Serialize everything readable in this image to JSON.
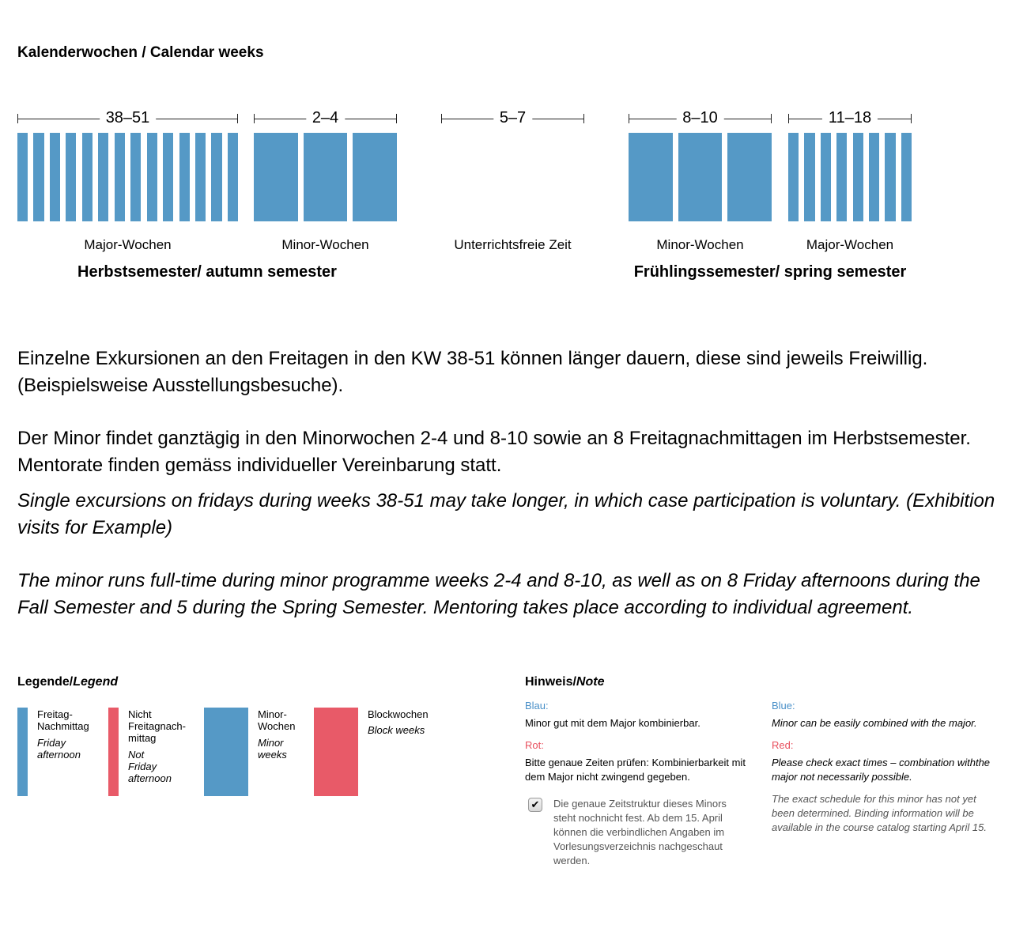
{
  "title": "Kalenderwochen / Calendar weeks",
  "colors": {
    "blue": "#5599c6",
    "red": "#e85a68",
    "label_blue": "#4a90c8",
    "label_red": "#e8505e"
  },
  "timeline": {
    "groups": [
      {
        "range": "38–51",
        "label": "Major-Wochen",
        "weeks": 14,
        "type": "major"
      },
      {
        "range": "2–4",
        "label": "Minor-Wochen",
        "weeks": 3,
        "type": "minor"
      },
      {
        "range": "5–7",
        "label": "Unterrichtsfreie Zeit",
        "weeks": 0,
        "type": "break"
      },
      {
        "range": "8–10",
        "label": "Minor-Wochen",
        "weeks": 3,
        "type": "minor"
      },
      {
        "range": "11–18",
        "label": "Major-Wochen",
        "weeks": 8,
        "type": "major"
      }
    ],
    "autumn": "Herbstsemester/ autumn semester",
    "spring": "Frühlingssemester/ spring semester"
  },
  "text": {
    "p1": "Einzelne Exkursionen an den Freitagen in den KW 38-51 können länger dauern, diese sind jeweils Freiwillig. (Beispielsweise Ausstellungsbesuche).",
    "p2": "Der Minor findet ganztägig in den Minorwochen 2-4 und 8-10 sowie an 8 Freitagnachmittagen im Herbstsemester. Mentorate finden gemäss individueller Vereinbarung statt.",
    "p3": "Single excursions on fridays during weeks 38-51 may take longer, in which case participation is voluntary. (Exhibition visits for Example)",
    "p4": "The minor runs full-time during minor programme weeks 2-4 and 8-10, as well as on 8 Friday afternoons during the Fall Semester and 5 during the Spring Semester. Mentoring takes place according to individual agreement."
  },
  "legend": {
    "title_de": "Legende/",
    "title_en": "Legend",
    "items": [
      {
        "de": "Freitag-Nachmittag",
        "en": "Friday afternoon",
        "color": "blue"
      },
      {
        "de": "Nicht Freitagnach-mittag",
        "en": "Not Friday afternoon",
        "color": "red"
      },
      {
        "de": "Minor-Wochen",
        "en": "Minor weeks",
        "color": "blue"
      },
      {
        "de": "Blockwochen",
        "en": "Block weeks",
        "color": "red"
      }
    ]
  },
  "note": {
    "title_de": "Hinweis/",
    "title_en": "Note",
    "blau": "Blau:",
    "blau_text": "Minor gut mit dem Major kombinierbar.",
    "rot": "Rot:",
    "rot_text": "Bitte genaue Zeiten prüfen: Kombinierbarkeit mit dem Major nicht zwingend gegeben.",
    "blue": "Blue:",
    "blue_text": "Minor can be easily combined with the major.",
    "red": "Red:",
    "red_text": "Please check exact times – combination withthe major not necessarily possible.",
    "checkbox_checked": true,
    "checkbox_text": "Die genaue Zeitstruktur dieses Minors steht nochnicht fest. Ab dem 15. April können die verbindlichen Angaben im Vorlesungsverzeichnis nachgeschaut werden.",
    "en_schedule": "The exact schedule for this minor has not yet been determined. Binding information will be available in the course catalog starting April 15."
  }
}
